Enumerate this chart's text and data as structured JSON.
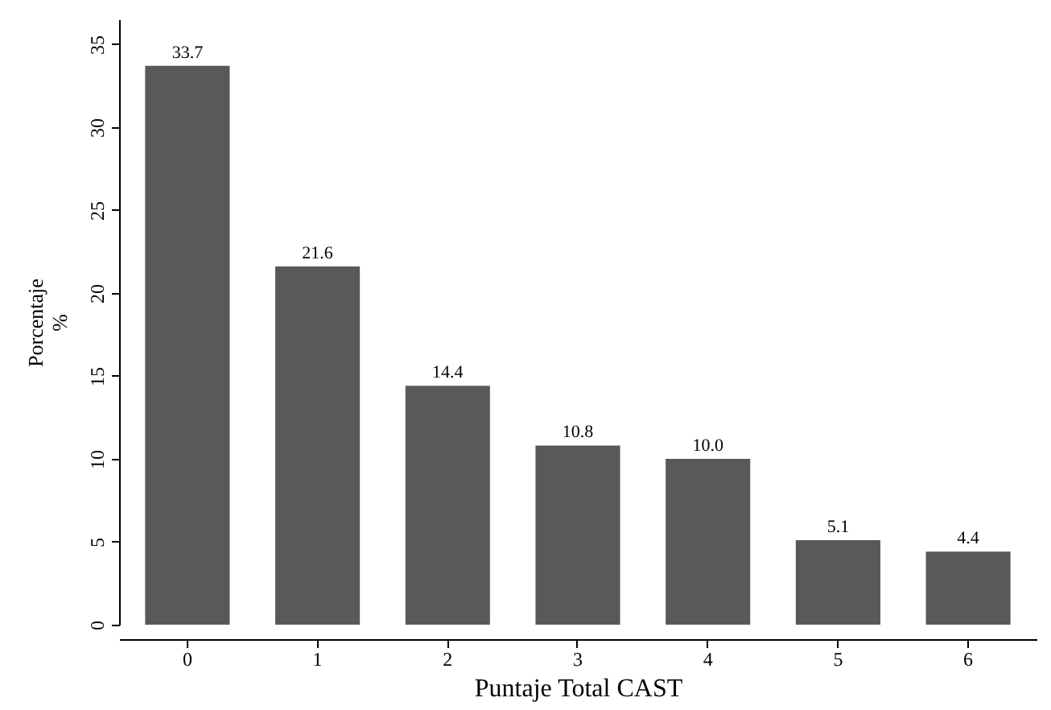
{
  "chart_data": {
    "type": "bar",
    "xlabel": "Puntaje Total CAST",
    "ylabel": "Porcentaje\n%",
    "categories": [
      "0",
      "1",
      "2",
      "3",
      "4",
      "5",
      "6"
    ],
    "values": [
      33.7,
      21.6,
      14.4,
      10.8,
      10.0,
      5.1,
      4.4
    ],
    "value_labels": [
      "33.7",
      "21.6",
      "14.4",
      "10.8",
      "10.0",
      "5.1",
      "4.4"
    ],
    "color": "#595959",
    "ylim": [
      0,
      36.5
    ],
    "yticks": [
      0,
      5,
      10,
      15,
      20,
      25,
      30,
      35
    ],
    "grid": false
  }
}
